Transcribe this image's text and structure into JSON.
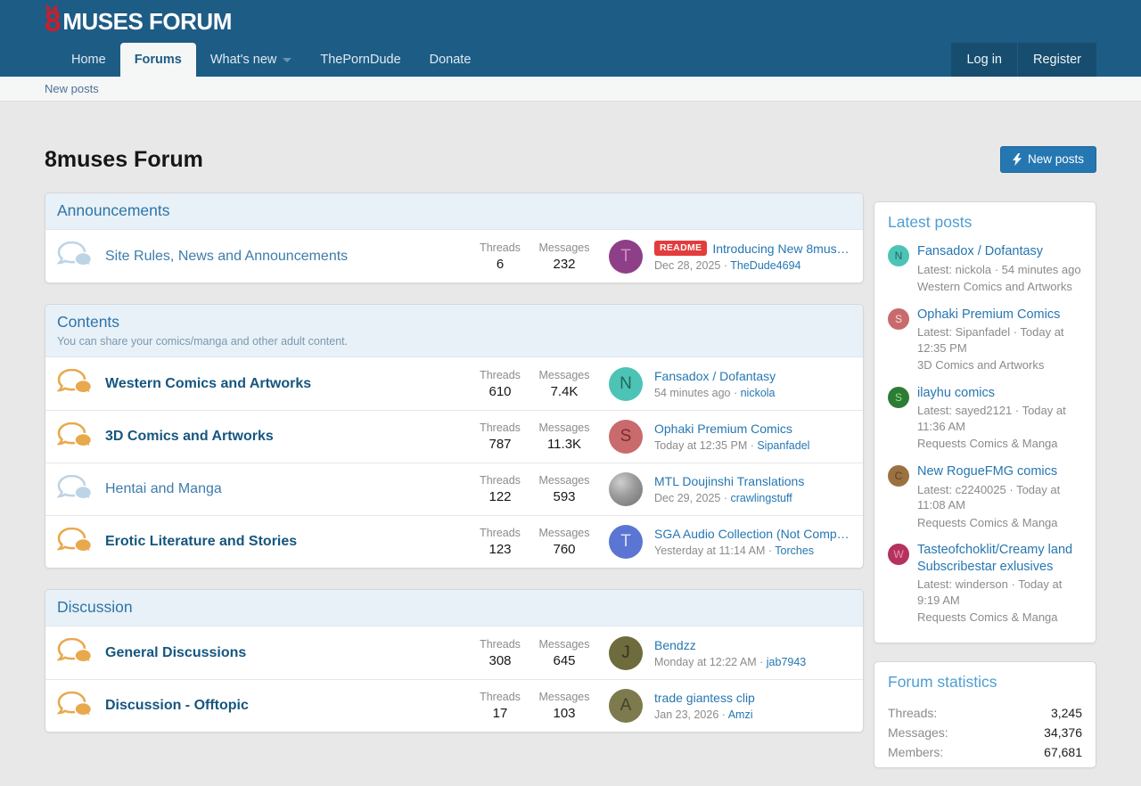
{
  "brand": {
    "logo_8": "8",
    "logo_text": "MUSES FORUM"
  },
  "nav": {
    "items": [
      {
        "label": "Home",
        "active": false,
        "caret": false
      },
      {
        "label": "Forums",
        "active": true,
        "caret": false
      },
      {
        "label": "What's new",
        "active": false,
        "caret": true
      },
      {
        "label": "ThePornDude",
        "active": false,
        "caret": false
      },
      {
        "label": "Donate",
        "active": false,
        "caret": false
      }
    ],
    "auth": [
      {
        "label": "Log in"
      },
      {
        "label": "Register"
      }
    ]
  },
  "subnav": {
    "new_posts": "New posts"
  },
  "page": {
    "title": "8muses Forum",
    "new_posts_button": "New posts"
  },
  "labels": {
    "threads": "Threads",
    "messages": "Messages"
  },
  "colors": {
    "header_blue": "#1d5c85",
    "accent_link": "#2577b1",
    "unread_icon": "#e8a94d",
    "read_icon": "#bdd4e5",
    "badge_red": "#e23c3c"
  },
  "categories": [
    {
      "title": "Announcements",
      "description": "",
      "forums": [
        {
          "title": "Site Rules, News and Announcements",
          "unread": false,
          "threads": "6",
          "messages": "232",
          "avatar": {
            "letter": "T",
            "bg": "#8e3f87",
            "fg": "#cf8ec7",
            "photo": false
          },
          "badge": "README",
          "last_thread": "Introducing New 8muses ...",
          "last_date": "Dec 28, 2025",
          "last_user": "TheDude4694"
        }
      ]
    },
    {
      "title": "Contents",
      "description": "You can share your comics/manga and other adult content.",
      "forums": [
        {
          "title": "Western Comics and Artworks",
          "unread": true,
          "threads": "610",
          "messages": "7.4K",
          "avatar": {
            "letter": "N",
            "bg": "#4dc3b5",
            "fg": "#20685f",
            "photo": false
          },
          "badge": "",
          "last_thread": "Fansadox / Dofantasy",
          "last_date": "54 minutes ago",
          "last_user": "nickola"
        },
        {
          "title": "3D Comics and Artworks",
          "unread": true,
          "threads": "787",
          "messages": "11.3K",
          "avatar": {
            "letter": "S",
            "bg": "#c96a6c",
            "fg": "#7d2c2c",
            "photo": false
          },
          "badge": "",
          "last_thread": "Ophaki Premium Comics",
          "last_date": "Today at 12:35 PM",
          "last_user": "Sipanfadel"
        },
        {
          "title": "Hentai and Manga",
          "unread": false,
          "threads": "122",
          "messages": "593",
          "avatar": {
            "letter": "",
            "bg": "",
            "fg": "",
            "photo": true
          },
          "badge": "",
          "last_thread": "MTL Doujinshi Translations",
          "last_date": "Dec 29, 2025",
          "last_user": "crawlingstuff"
        },
        {
          "title": "Erotic Literature and Stories",
          "unread": true,
          "threads": "123",
          "messages": "760",
          "avatar": {
            "letter": "T",
            "bg": "#5b76d2",
            "fg": "#d9e0f8",
            "photo": false
          },
          "badge": "",
          "last_thread": "SGA Audio Collection (Not Complet...",
          "last_date": "Yesterday at 11:14 AM",
          "last_user": "Torches"
        }
      ]
    },
    {
      "title": "Discussion",
      "description": "",
      "forums": [
        {
          "title": "General Discussions",
          "unread": true,
          "threads": "308",
          "messages": "645",
          "avatar": {
            "letter": "J",
            "bg": "#6e6b3c",
            "fg": "#35341d",
            "photo": false
          },
          "badge": "",
          "last_thread": "Bendzz",
          "last_date": "Monday at 12:22 AM",
          "last_user": "jab7943"
        },
        {
          "title": "Discussion - Offtopic",
          "unread": true,
          "threads": "17",
          "messages": "103",
          "avatar": {
            "letter": "A",
            "bg": "#7d7b4e",
            "fg": "#454325",
            "photo": false
          },
          "badge": "",
          "last_thread": "trade giantess clip",
          "last_date": "Jan 23, 2026",
          "last_user": "Amzi"
        }
      ]
    }
  ],
  "sidebar": {
    "latest_posts": {
      "title": "Latest posts",
      "items": [
        {
          "avatar": {
            "letter": "N",
            "bg": "#4dc3b5",
            "fg": "#20685f"
          },
          "title": "Fansadox / Dofantasy",
          "meta": "Latest: nickola · 54 minutes ago",
          "forum": "Western Comics and Artworks"
        },
        {
          "avatar": {
            "letter": "S",
            "bg": "#c96a6c",
            "fg": "#f3e2e2"
          },
          "title": "Ophaki Premium Comics",
          "meta": "Latest: Sipanfadel · Today at 12:35 PM",
          "forum": "3D Comics and Artworks"
        },
        {
          "avatar": {
            "letter": "S",
            "bg": "#2e7b34",
            "fg": "#8fe595"
          },
          "title": "ilayhu comics",
          "meta": "Latest: sayed2121 · Today at 11:36 AM",
          "forum": "Requests Comics & Manga"
        },
        {
          "avatar": {
            "letter": "C",
            "bg": "#9c7142",
            "fg": "#5c3f1e"
          },
          "title": "New RogueFMG comics",
          "meta": "Latest: c2240025 · Today at 11:08 AM",
          "forum": "Requests Comics & Manga"
        },
        {
          "avatar": {
            "letter": "W",
            "bg": "#b5315e",
            "fg": "#e794b4"
          },
          "title": "Tasteofchoklit/Creamy land Subscribestar exlusives",
          "meta": "Latest: winderson · Today at 9:19 AM",
          "forum": "Requests Comics & Manga"
        }
      ]
    },
    "forum_statistics": {
      "title": "Forum statistics",
      "rows": [
        {
          "label": "Threads:",
          "value": "3,245"
        },
        {
          "label": "Messages:",
          "value": "34,376"
        },
        {
          "label": "Members:",
          "value": "67,681"
        }
      ]
    }
  }
}
